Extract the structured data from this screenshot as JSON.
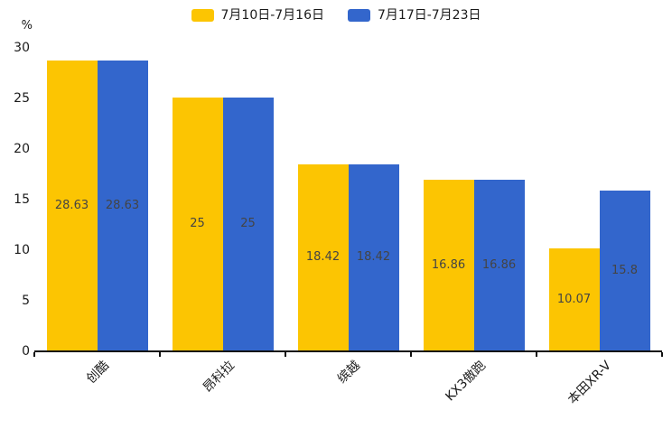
{
  "chart_data": {
    "type": "bar",
    "categories": [
      "创酷",
      "昂科拉",
      "缤越",
      "KX3傲跑",
      "本田XR-V"
    ],
    "series": [
      {
        "name": "7月10日-7月16日",
        "color": "#FCC502",
        "values": [
          28.63,
          25,
          18.42,
          16.86,
          10.07
        ]
      },
      {
        "name": "7月17日-7月23日",
        "color": "#3366CC",
        "values": [
          28.63,
          25,
          18.42,
          16.86,
          15.8
        ]
      }
    ],
    "title": "",
    "xlabel": "",
    "ylabel": "%",
    "ylim": [
      0,
      30
    ],
    "yticks": [
      0,
      5,
      10,
      15,
      20,
      25,
      30
    ],
    "grid": false,
    "legend_position": "top",
    "bar_label_color": "#444444",
    "axis_color": "#111111",
    "text_color": "#1a1a1a"
  }
}
